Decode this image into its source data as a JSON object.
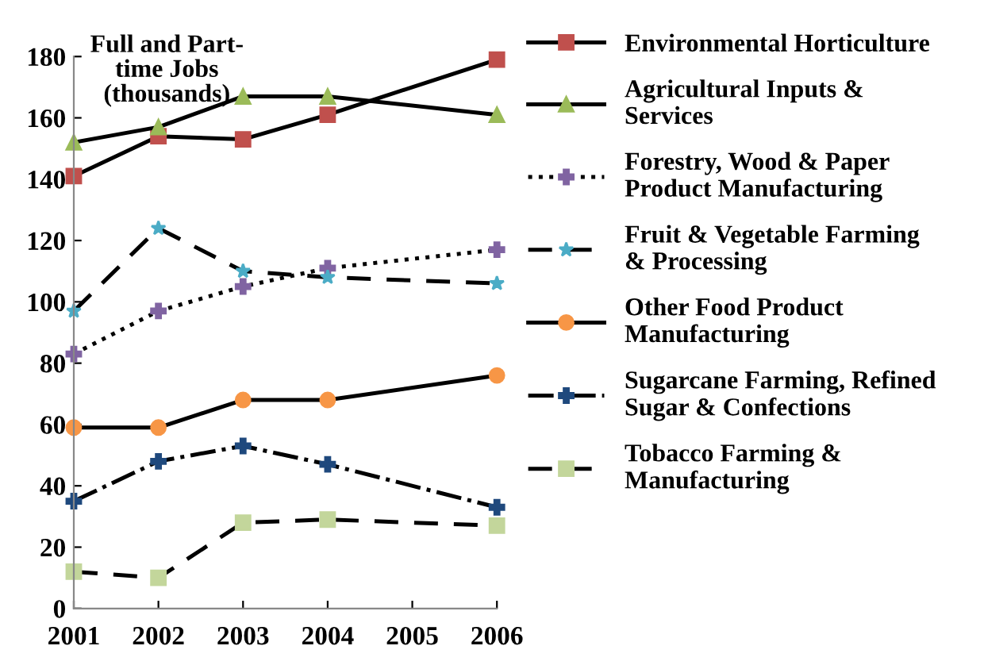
{
  "chart_data": {
    "type": "line",
    "ylabel": "Full and Part-\ntime Jobs\n(thousands)",
    "x": [
      2001,
      2002,
      2003,
      2004,
      2006
    ],
    "xlim": [
      2001,
      2006
    ],
    "xticks": [
      2001,
      2002,
      2003,
      2004,
      2005,
      2006
    ],
    "ylim": [
      0,
      180
    ],
    "yticks": [
      0,
      20,
      40,
      60,
      80,
      100,
      120,
      140,
      160,
      180
    ],
    "grid": false,
    "legend": "right",
    "series": [
      {
        "name": "Environmental Horticulture",
        "color": "#c0504d",
        "marker": "square",
        "line_style": "solid",
        "values": [
          141,
          154,
          153,
          161,
          179
        ]
      },
      {
        "name": "Agricultural Inputs &\nServices",
        "color": "#9bbb59",
        "marker": "triangle",
        "line_style": "solid",
        "values": [
          152,
          157,
          167,
          167,
          161
        ]
      },
      {
        "name": "Forestry, Wood & Paper\nProduct Manufacturing",
        "color": "#8064a2",
        "marker": "cross",
        "line_style": "dotted",
        "values": [
          83,
          97,
          105,
          111,
          117
        ]
      },
      {
        "name": "Fruit & Vegetable Farming\n& Processing",
        "color": "#4bacc6",
        "marker": "star",
        "line_style": "dashed",
        "values": [
          97,
          124,
          110,
          108,
          106
        ]
      },
      {
        "name": "Other Food Product\nManufacturing",
        "color": "#f79646",
        "marker": "circle",
        "line_style": "solid",
        "values": [
          59,
          59,
          68,
          68,
          76
        ]
      },
      {
        "name": "Sugarcane Farming, Refined\nSugar & Confections",
        "color": "#1f497d",
        "marker": "cross",
        "line_style": "dashdot",
        "values": [
          35,
          48,
          53,
          47,
          33
        ]
      },
      {
        "name": "Tobacco Farming &\nManufacturing",
        "color": "#c3d69b",
        "marker": "square",
        "line_style": "dashed",
        "values": [
          12,
          10,
          28,
          29,
          27
        ]
      }
    ]
  }
}
